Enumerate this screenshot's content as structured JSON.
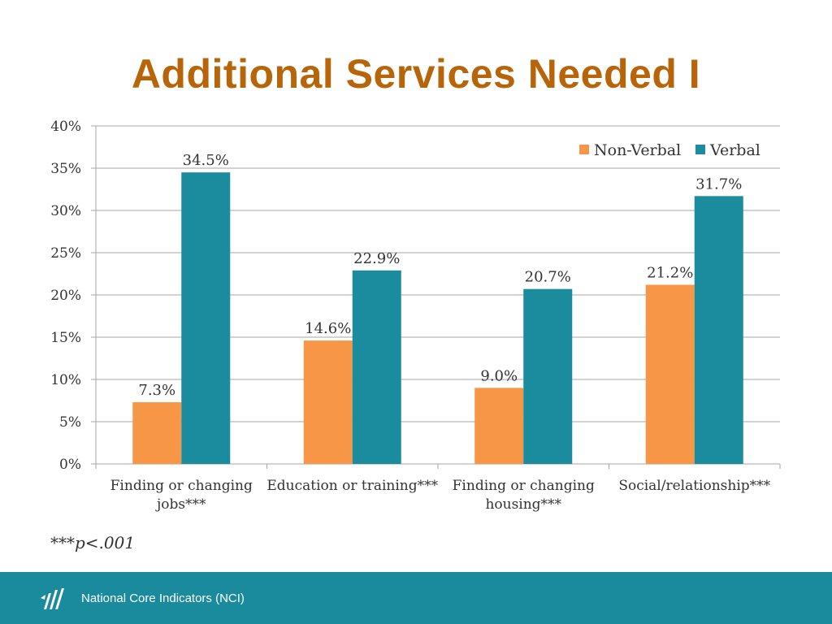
{
  "title": "Additional Services Needed I",
  "footnote": {
    "stars": "***",
    "p_text": "p<.001"
  },
  "footer": {
    "org": "National Core Indicators (NCI)",
    "logo_icon": "nci-logo-icon"
  },
  "colors": {
    "non_verbal": "#F79646",
    "verbal": "#1B8C9E",
    "title": "#B8650A",
    "footer": "#1A8B9C"
  },
  "chart_data": {
    "type": "bar",
    "categories": [
      [
        "Finding or changing",
        "jobs***"
      ],
      [
        "Education or training***"
      ],
      [
        "Finding or changing",
        "housing***"
      ],
      [
        "Social/relationship***"
      ]
    ],
    "series": [
      {
        "name": "Non-Verbal",
        "values": [
          7.3,
          14.6,
          9.0,
          21.2
        ],
        "labels": [
          "7.3%",
          "14.6%",
          "9.0%",
          "21.2%"
        ],
        "color": "#F79646"
      },
      {
        "name": "Verbal",
        "values": [
          34.5,
          22.9,
          20.7,
          31.7
        ],
        "labels": [
          "34.5%",
          "22.9%",
          "20.7%",
          "31.7%"
        ],
        "color": "#1B8C9E"
      }
    ],
    "ylim": [
      0,
      40
    ],
    "yticks": [
      "0%",
      "5%",
      "10%",
      "15%",
      "20%",
      "25%",
      "30%",
      "35%",
      "40%"
    ],
    "grid": true,
    "legend_position": "top-right"
  }
}
